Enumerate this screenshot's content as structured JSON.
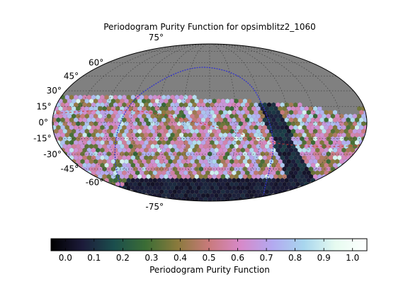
{
  "chart_data": {
    "type": "heatmap",
    "title": "Periodogram Purity Function for opsimblitz2_1060",
    "projection": "mollweide",
    "lat_labels": [
      "75°",
      "60°",
      "45°",
      "30°",
      "15°",
      "0°",
      "-15°",
      "-30°",
      "-45°",
      "-60°",
      "-75°"
    ],
    "lat_values": [
      75,
      60,
      45,
      30,
      15,
      0,
      -15,
      -30,
      -45,
      -60,
      -75
    ],
    "grid": true,
    "colorbar": {
      "label": "Periodogram Purity Function",
      "ticks": [
        "0.0",
        "0.1",
        "0.2",
        "0.3",
        "0.4",
        "0.5",
        "0.6",
        "0.7",
        "0.8",
        "0.9",
        "1.0"
      ],
      "tick_values": [
        0.0,
        0.1,
        0.2,
        0.3,
        0.4,
        0.5,
        0.6,
        0.7,
        0.8,
        0.9,
        1.0
      ],
      "range": [
        -0.05,
        1.05
      ],
      "colormap": "cubehelix",
      "stops": [
        "#000000",
        "#1c1b3a",
        "#1b4e4d",
        "#3b6d35",
        "#8a7a3c",
        "#c97a7c",
        "#d789c9",
        "#b3a9f0",
        "#a8d6ee",
        "#e6fbf0",
        "#ffffff"
      ],
      "orientation": "horizontal",
      "placement": "bottom"
    },
    "regions": [
      {
        "name": "unobserved north",
        "color": "#808080",
        "lat_range": [
          5,
          90
        ]
      },
      {
        "name": "survey footprint",
        "lat_range": [
          -68,
          15
        ],
        "value_range": [
          0.3,
          0.95
        ],
        "typical_value": 0.6
      },
      {
        "name": "galactic plane band",
        "value_range": [
          0.0,
          0.15
        ]
      },
      {
        "name": "south polar cap",
        "lat_range": [
          -90,
          -62
        ],
        "value_range": [
          0.0,
          0.1
        ]
      }
    ],
    "overlays": [
      {
        "name": "ecliptic",
        "color": "#3333cc",
        "style": "line"
      },
      {
        "name": "galactic plane",
        "color": "#cc3333",
        "style": "dashed"
      }
    ],
    "background_color": "#808080",
    "frame_color": "#000000"
  }
}
